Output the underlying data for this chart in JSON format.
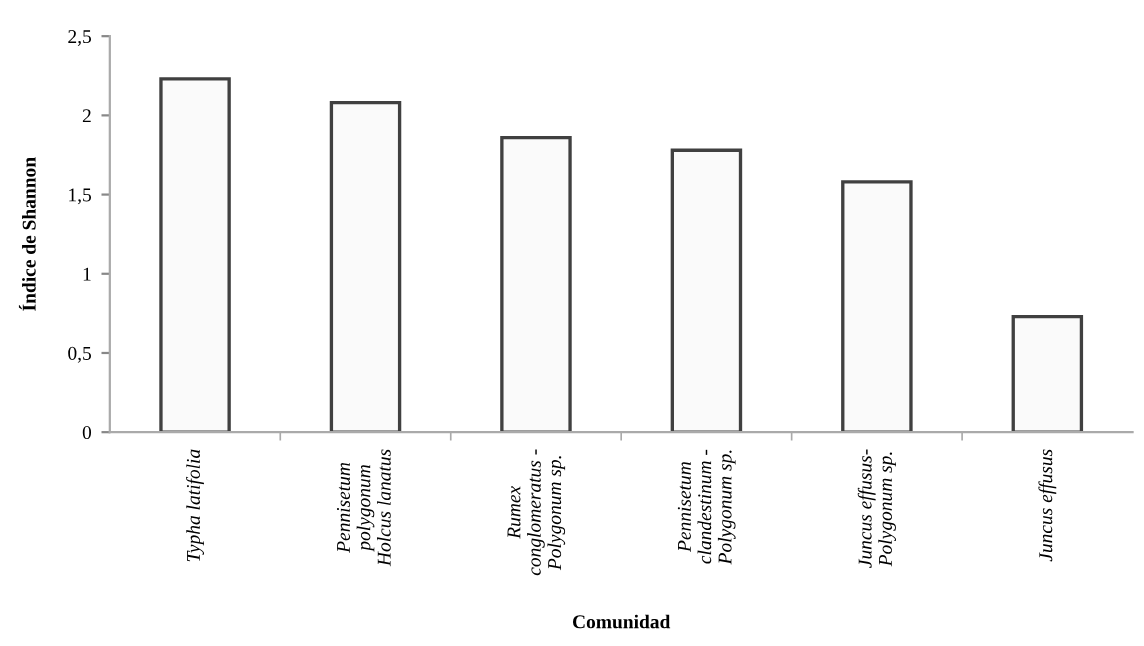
{
  "chart_data": {
    "type": "bar",
    "xlabel": "Comunidad",
    "ylabel": "Índice de Shannon",
    "categories": [
      "Typha latifolia",
      "Pennisetum\npolygonum\nHolcus lanatus",
      "Rumex\nconglomeratus -\nPolygonum sp.",
      "Pennisetum\nclandestinum -\nPolygonum sp.",
      "Juncus effusus-\nPolygonum sp.",
      "Juncus effusus"
    ],
    "values": [
      2.23,
      2.08,
      1.86,
      1.78,
      1.58,
      0.73
    ],
    "color": "#fafafa",
    "ylim": [
      0,
      2.5
    ],
    "yticks": [
      {
        "value": 0,
        "label": "0"
      },
      {
        "value": 0.5,
        "label": "0,5"
      },
      {
        "value": 1,
        "label": "1"
      },
      {
        "value": 1.5,
        "label": "1,5"
      },
      {
        "value": 2,
        "label": "2"
      },
      {
        "value": 2.5,
        "label": "2,5"
      }
    ],
    "grid": false,
    "legend": false
  }
}
